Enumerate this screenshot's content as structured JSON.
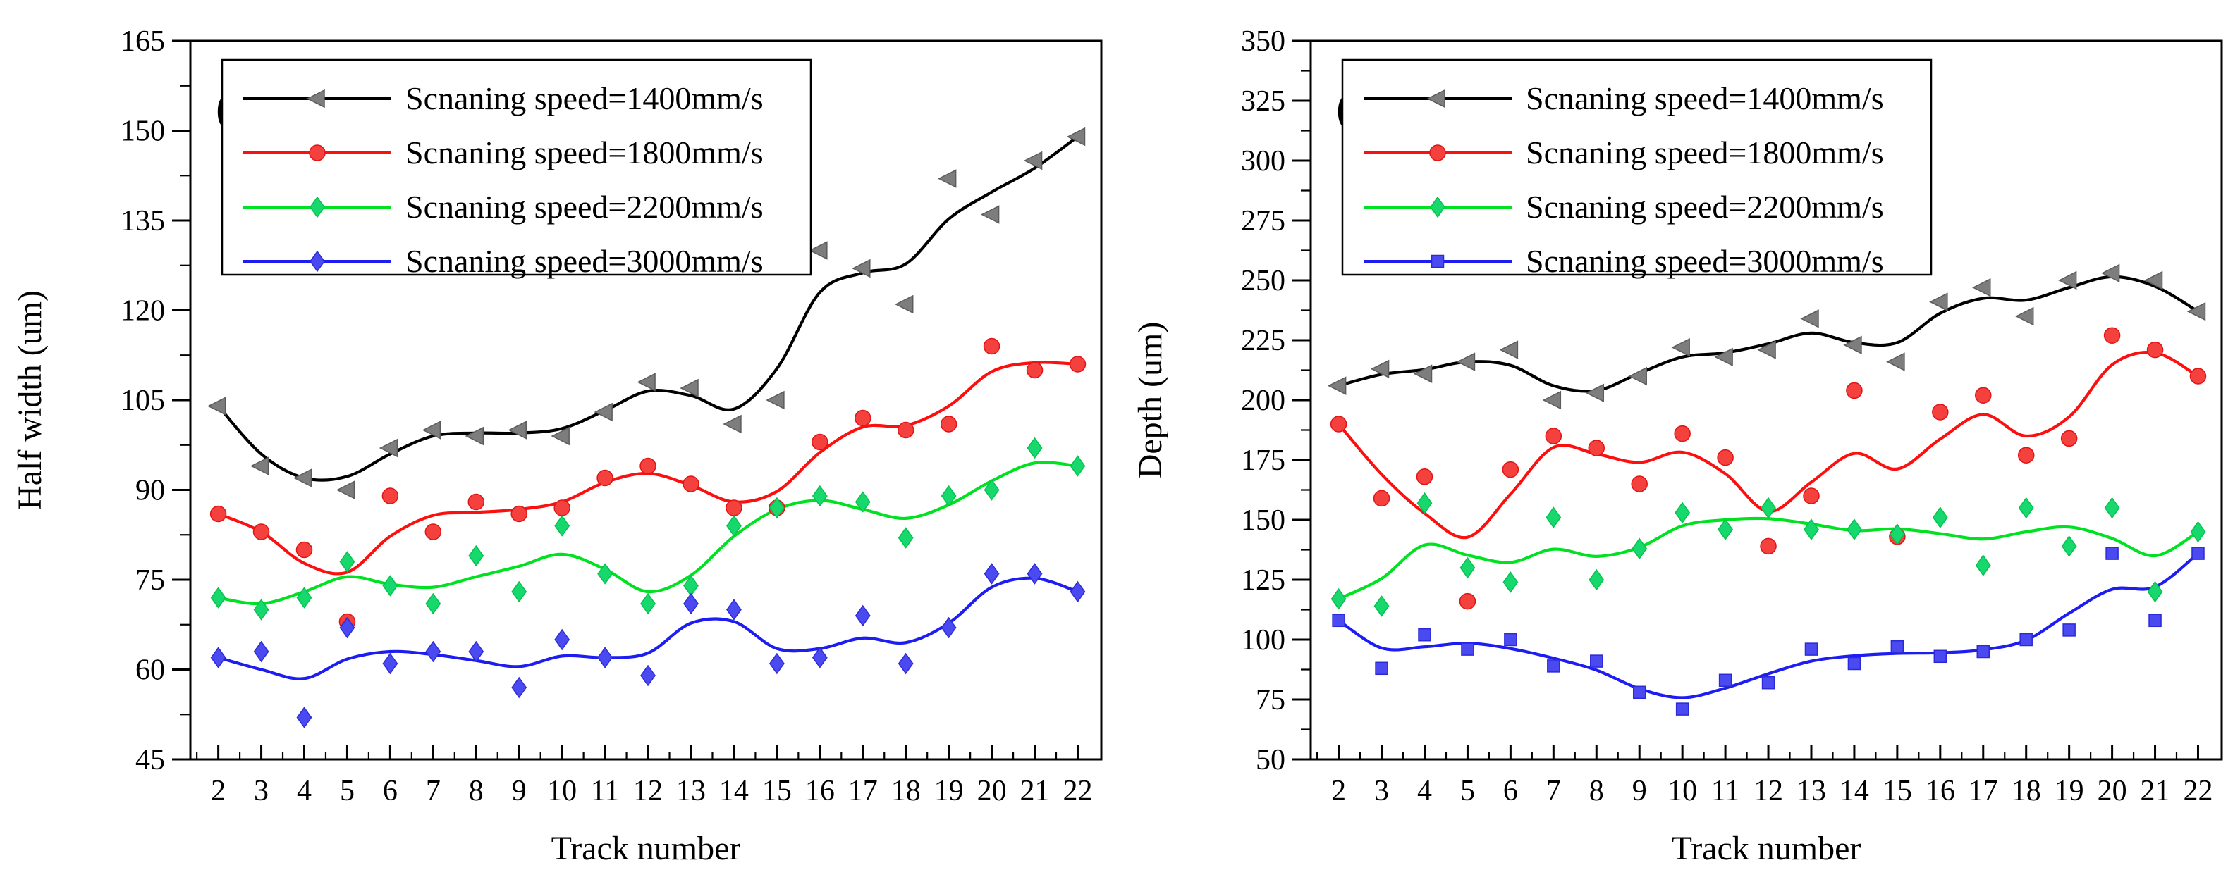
{
  "figure": {
    "background": "#ffffff",
    "x_axis_title": "Track number",
    "panel_a_title": "Half width (um)",
    "panel_b_title": "Depth (um)"
  },
  "chart_data": [
    {
      "type": "scatter",
      "panel_label": "(a)",
      "xlabel": "Track number",
      "ylabel": "Half width (um)",
      "x": [
        2,
        3,
        4,
        5,
        6,
        7,
        8,
        9,
        10,
        11,
        12,
        13,
        14,
        15,
        16,
        17,
        18,
        19,
        20,
        21,
        22
      ],
      "xlim": [
        1.35,
        22.55
      ],
      "ylim": [
        45,
        165
      ],
      "y_ticks": [
        45,
        60,
        75,
        90,
        105,
        120,
        135,
        150,
        165
      ],
      "grid": false,
      "legend_position": "top-left",
      "series": [
        {
          "name": "Scnaning speed=1400mm/s",
          "speed_mm_s": 1400,
          "marker": "triangle-left",
          "line_color": "#000000",
          "marker_fill": "#7d7d7d",
          "marker_edge": "#5c5c5c",
          "values": [
            104,
            94,
            92,
            90,
            97,
            100,
            99,
            100,
            99,
            103,
            108,
            107,
            101,
            105,
            130,
            127,
            121,
            142,
            136,
            145,
            149
          ]
        },
        {
          "name": "Scnaning speed=1800mm/s",
          "speed_mm_s": 1800,
          "marker": "circle",
          "line_color": "#fb0f0f",
          "marker_fill": "#f5413e",
          "marker_edge": "#e01414",
          "values": [
            86,
            83,
            80,
            68,
            89,
            83,
            88,
            86,
            87,
            92,
            94,
            91,
            87,
            87,
            98,
            102,
            100,
            101,
            114,
            110,
            111
          ]
        },
        {
          "name": "Scnaning speed=2200mm/s",
          "speed_mm_s": 2200,
          "marker": "diamond",
          "line_color": "#00e221",
          "marker_fill": "#16d86d",
          "marker_edge": "#04c24d",
          "values": [
            72,
            70,
            72,
            78,
            74,
            71,
            79,
            73,
            84,
            76,
            71,
            74,
            84,
            87,
            89,
            88,
            82,
            89,
            90,
            97,
            94
          ]
        },
        {
          "name": "Scnaning speed=3000mm/s",
          "speed_mm_s": 3000,
          "marker": "diamond",
          "line_color": "#1d1df2",
          "marker_fill": "#4a4af0",
          "marker_edge": "#2a2ad8",
          "values": [
            62,
            63,
            52,
            67,
            61,
            63,
            63,
            57,
            65,
            62,
            59,
            71,
            70,
            61,
            62,
            69,
            61,
            67,
            76,
            76,
            73
          ]
        }
      ]
    },
    {
      "type": "scatter",
      "panel_label": "(b)",
      "xlabel": "Track number",
      "ylabel": "Depth (um)",
      "x": [
        2,
        3,
        4,
        5,
        6,
        7,
        8,
        9,
        10,
        11,
        12,
        13,
        14,
        15,
        16,
        17,
        18,
        19,
        20,
        21,
        22
      ],
      "xlim": [
        1.35,
        22.55
      ],
      "ylim": [
        50,
        350
      ],
      "y_ticks": [
        50,
        75,
        100,
        125,
        150,
        175,
        200,
        225,
        250,
        275,
        300,
        325,
        350
      ],
      "grid": false,
      "legend_position": "top-left",
      "series": [
        {
          "name": "Scnaning speed=1400mm/s",
          "speed_mm_s": 1400,
          "marker": "triangle-left",
          "line_color": "#000000",
          "marker_fill": "#7d7d7d",
          "marker_edge": "#5c5c5c",
          "values": [
            206,
            213,
            211,
            216,
            221,
            200,
            203,
            210,
            222,
            218,
            221,
            234,
            223,
            216,
            241,
            247,
            235,
            250,
            253,
            250,
            237
          ]
        },
        {
          "name": "Scnaning speed=1800mm/s",
          "speed_mm_s": 1800,
          "marker": "circle",
          "line_color": "#fb0f0f",
          "marker_fill": "#f5413e",
          "marker_edge": "#e01414",
          "values": [
            190,
            159,
            168,
            116,
            171,
            185,
            180,
            165,
            186,
            176,
            139,
            160,
            204,
            143,
            195,
            202,
            177,
            184,
            227,
            221,
            210
          ]
        },
        {
          "name": "Scnaning speed=2200mm/s",
          "speed_mm_s": 2200,
          "marker": "diamond",
          "line_color": "#00e221",
          "marker_fill": "#16d86d",
          "marker_edge": "#04c24d",
          "values": [
            117,
            114,
            157,
            130,
            124,
            151,
            125,
            138,
            153,
            146,
            155,
            146,
            146,
            144,
            151,
            131,
            155,
            139,
            155,
            120,
            145
          ]
        },
        {
          "name": "Scnaning speed=3000mm/s",
          "speed_mm_s": 3000,
          "marker": "square",
          "line_color": "#1d1df2",
          "marker_fill": "#4a4af0",
          "marker_edge": "#2a2ad8",
          "values": [
            108,
            88,
            102,
            96,
            100,
            89,
            91,
            78,
            71,
            83,
            82,
            96,
            90,
            97,
            93,
            95,
            100,
            104,
            136,
            108,
            136
          ]
        }
      ]
    }
  ]
}
